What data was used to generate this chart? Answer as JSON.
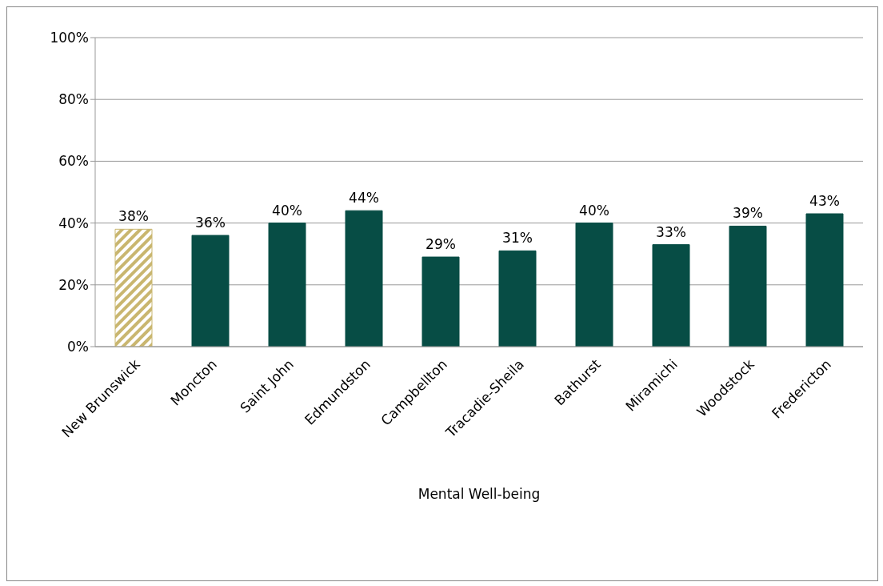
{
  "chart_data": {
    "type": "bar",
    "xlabel": "Mental Well-being",
    "categories": [
      "New Brunswick",
      "Moncton",
      "Saint John",
      "Edmundston",
      "Campbellton",
      "Tracadie-Sheila",
      "Bathurst",
      "Miramichi",
      "Woodstock",
      "Fredericton"
    ],
    "values": [
      38,
      36,
      40,
      44,
      29,
      31,
      40,
      33,
      39,
      43
    ],
    "colors": [
      "#c9b66f",
      "#074d45",
      "#074d45",
      "#074d45",
      "#074d45",
      "#074d45",
      "#074d45",
      "#074d45",
      "#074d45",
      "#074d45"
    ],
    "value_labels": [
      "38%",
      "36%",
      "40%",
      "44%",
      "29%",
      "31%",
      "40%",
      "33%",
      "39%",
      "43%"
    ],
    "ylim": [
      0,
      100
    ],
    "yticks": [
      {
        "value": 0,
        "label": "0%"
      },
      {
        "value": 20,
        "label": "20%"
      },
      {
        "value": 40,
        "label": "40%"
      },
      {
        "value": 60,
        "label": "60%"
      },
      {
        "value": 80,
        "label": "80%"
      },
      {
        "value": 100,
        "label": "100%"
      }
    ],
    "grid": "y"
  }
}
